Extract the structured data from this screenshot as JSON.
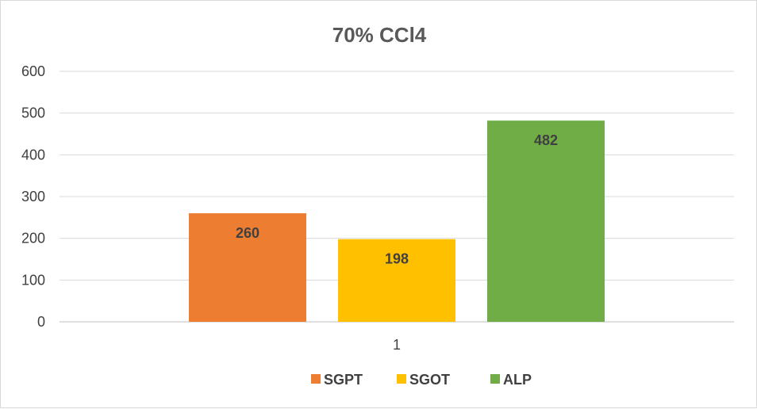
{
  "chart_data": {
    "type": "bar",
    "title": "70% CCl4",
    "categories": [
      "1"
    ],
    "series": [
      {
        "name": "SGPT",
        "values": [
          260
        ],
        "color": "#ed7d31"
      },
      {
        "name": "SGOT",
        "values": [
          198
        ],
        "color": "#ffc000"
      },
      {
        "name": "ALP",
        "values": [
          482
        ],
        "color": "#70ad47"
      }
    ],
    "ylim": [
      0,
      600
    ],
    "yticks": [
      "0",
      "100",
      "200",
      "300",
      "400",
      "500",
      "600"
    ],
    "grid": true,
    "legend": "bottom",
    "xlabel": "",
    "ylabel": ""
  }
}
